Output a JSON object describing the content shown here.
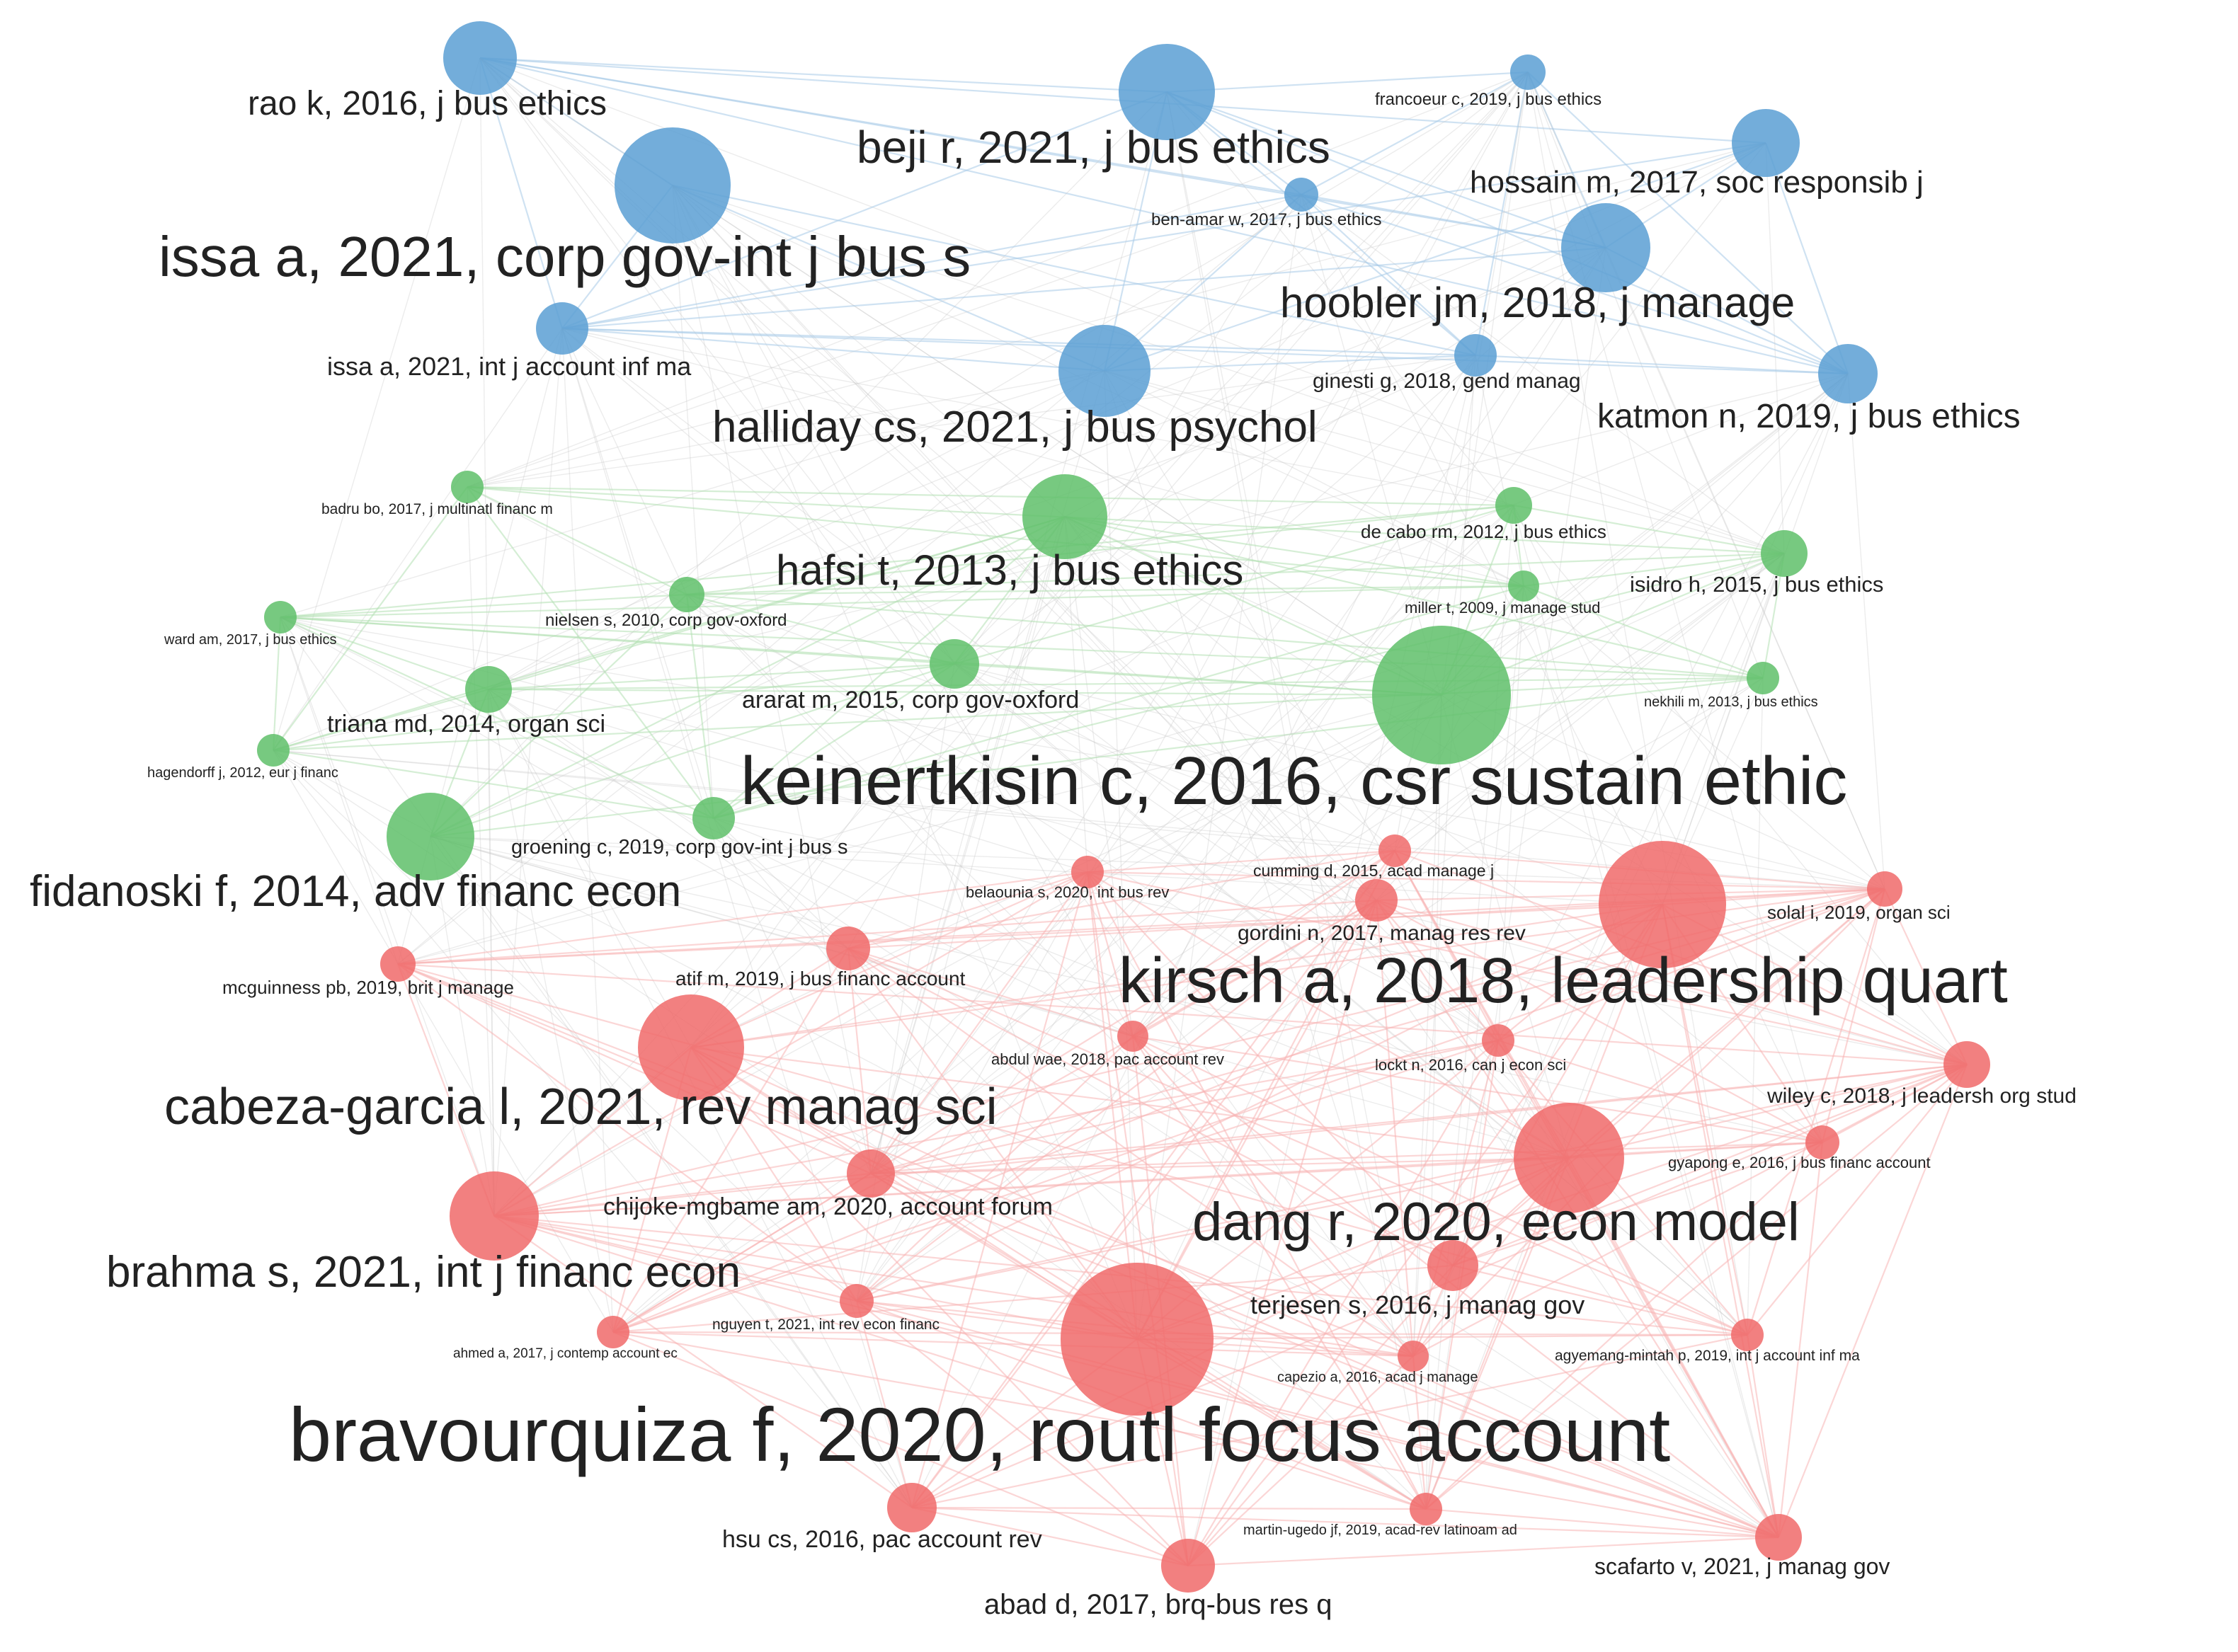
{
  "clusters": {
    "blue": {
      "node": "#5b9fd3",
      "edge": "#a8cbe8"
    },
    "green": {
      "node": "#5fbf6a",
      "edge": "#b3e0b3"
    },
    "red": {
      "node": "#f06a6a",
      "edge": "#f7b4b4"
    }
  },
  "nodes": [
    {
      "label": "rao k, 2016, j bus ethics",
      "cluster": "blue"
    },
    {
      "label": "beji r, 2021, j bus ethics",
      "cluster": "blue"
    },
    {
      "label": "francoeur c, 2019, j bus ethics",
      "cluster": "blue"
    },
    {
      "label": "hossain m, 2017, soc responsib j",
      "cluster": "blue"
    },
    {
      "label": "issa a, 2021, corp gov-int j bus s",
      "cluster": "blue"
    },
    {
      "label": "ben-amar w, 2017, j bus ethics",
      "cluster": "blue"
    },
    {
      "label": "hoobler jm, 2018, j manage",
      "cluster": "blue"
    },
    {
      "label": "issa a, 2021, int j account inf ma",
      "cluster": "blue"
    },
    {
      "label": "halliday cs, 2021, j bus psychol",
      "cluster": "blue"
    },
    {
      "label": "ginesti g, 2018, gend manag",
      "cluster": "blue"
    },
    {
      "label": "katmon n, 2019, j bus ethics",
      "cluster": "blue"
    },
    {
      "label": "badru bo, 2017, j multinatl financ m",
      "cluster": "green"
    },
    {
      "label": "hafsi t, 2013, j bus ethics",
      "cluster": "green"
    },
    {
      "label": "de cabo rm, 2012, j bus ethics",
      "cluster": "green"
    },
    {
      "label": "isidro h, 2015, j bus ethics",
      "cluster": "green"
    },
    {
      "label": "miller t, 2009, j manage stud",
      "cluster": "green"
    },
    {
      "label": "nielsen s, 2010, corp gov-oxford",
      "cluster": "green"
    },
    {
      "label": "ward am, 2017, j bus ethics",
      "cluster": "green"
    },
    {
      "label": "ararat m, 2015, corp gov-oxford",
      "cluster": "green"
    },
    {
      "label": "triana md, 2014, organ sci",
      "cluster": "green"
    },
    {
      "label": "nekhili m, 2013, j bus ethics",
      "cluster": "green"
    },
    {
      "label": "keinertkisin c, 2016, csr sustain ethic",
      "cluster": "green"
    },
    {
      "label": "hagendorff j, 2012, eur j financ",
      "cluster": "green"
    },
    {
      "label": "groening c, 2019, corp gov-int j bus s",
      "cluster": "green"
    },
    {
      "label": "fidanoski f, 2014, adv financ econ",
      "cluster": "green"
    },
    {
      "label": "cumming d, 2015, acad manage j",
      "cluster": "red"
    },
    {
      "label": "belaounia s, 2020, int bus rev",
      "cluster": "red"
    },
    {
      "label": "solal i, 2019, organ sci",
      "cluster": "red"
    },
    {
      "label": "gordini n, 2017, manag res rev",
      "cluster": "red"
    },
    {
      "label": "kirsch a, 2018, leadership quart",
      "cluster": "red"
    },
    {
      "label": "mcguinness pb, 2019, brit j manage",
      "cluster": "red"
    },
    {
      "label": "atif m, 2019, j bus financ account",
      "cluster": "red"
    },
    {
      "label": "abdul wae, 2018, pac account rev",
      "cluster": "red"
    },
    {
      "label": "lockt n, 2016, can j econ sci",
      "cluster": "red"
    },
    {
      "label": "wiley c, 2018, j leadersh org stud",
      "cluster": "red"
    },
    {
      "label": "cabeza-garcia l, 2021, rev manag sci",
      "cluster": "red"
    },
    {
      "label": "gyapong e, 2016, j bus financ account",
      "cluster": "red"
    },
    {
      "label": "chijoke-mgbame am, 2020, account forum",
      "cluster": "red"
    },
    {
      "label": "dang r, 2020, econ model",
      "cluster": "red"
    },
    {
      "label": "brahma s, 2021, int j financ econ",
      "cluster": "red"
    },
    {
      "label": "terjesen s, 2016, j manag gov",
      "cluster": "red"
    },
    {
      "label": "nguyen t, 2021, int rev econ financ",
      "cluster": "red"
    },
    {
      "label": "ahmed a, 2017, j contemp account ec",
      "cluster": "red"
    },
    {
      "label": "capezio a, 2016, acad j manage",
      "cluster": "red"
    },
    {
      "label": "agyemang-mintah p, 2019, int j account inf ma",
      "cluster": "red"
    },
    {
      "label": "bravourquiza f, 2020, routl focus account",
      "cluster": "red"
    },
    {
      "label": "hsu cs, 2016, pac account rev",
      "cluster": "red"
    },
    {
      "label": "martin-ugedo jf, 2019, acad-rev latinoam ad",
      "cluster": "red"
    },
    {
      "label": "scafarto v, 2021, j manag gov",
      "cluster": "red"
    },
    {
      "label": "abad d, 2017, brq-bus res q",
      "cluster": "red"
    }
  ]
}
